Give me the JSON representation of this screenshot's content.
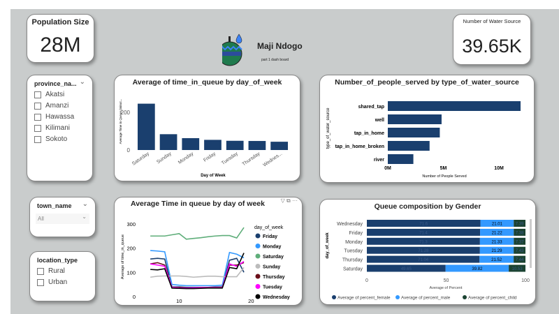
{
  "population": {
    "label": "Population Size",
    "value": "28M"
  },
  "water_sources": {
    "label": "Number of Water Source",
    "value": "39.65K"
  },
  "logo": {
    "title": "Maji Ndogo",
    "subtitle": "part 1 dash board"
  },
  "province_slicer": {
    "title": "province_na...",
    "options": [
      "Akatsi",
      "Amanzi",
      "Hawassa",
      "Kilimani",
      "Sokoto"
    ]
  },
  "town_slicer": {
    "title": "town_name",
    "value": "All"
  },
  "location_slicer": {
    "title": "location_type",
    "options": [
      "Rural",
      "Urban"
    ]
  },
  "colors": {
    "bar": "#1a3f6e",
    "female": "#1a3f6e",
    "male": "#3399ff",
    "child": "#1b4332",
    "background": "#c9cccc"
  },
  "chart_data": [
    {
      "type": "bar",
      "title": "Average of time_in_queue by day_of_week",
      "xlabel": "Day of Week",
      "ylabel": "Average Time in Queue (minut...",
      "categories": [
        "Saturday",
        "Sunday",
        "Monday",
        "Friday",
        "Tuesday",
        "Thursday",
        "Wednes..."
      ],
      "values": [
        246,
        84,
        63,
        54,
        49,
        48,
        44
      ],
      "yticks": [
        "0",
        "200"
      ],
      "ylim": [
        0,
        280
      ]
    },
    {
      "type": "bar",
      "orientation": "horizontal",
      "title": "Number_of_people_served by type_of_water_source",
      "xlabel": "Number of People Served",
      "ylabel": "type_of_water_source",
      "categories": [
        "shared_tap",
        "well",
        "tap_in_home",
        "tap_in_home_broken",
        "river"
      ],
      "values": [
        11.95,
        4.84,
        4.68,
        3.76,
        2.3
      ],
      "unit": "M",
      "xticks": [
        "0M",
        "5M",
        "10M"
      ],
      "xlim": [
        0,
        12.5
      ]
    },
    {
      "type": "line",
      "title": "Average Time in queue by day of week",
      "xlabel": "hour_of_day",
      "ylabel": "Average of time_in_queue",
      "legend_title": "day_of_week",
      "x": [
        6,
        7,
        8,
        9,
        10,
        11,
        12,
        13,
        14,
        15,
        16,
        17,
        18,
        19
      ],
      "xticks": [
        "10",
        "20"
      ],
      "yticks": [
        "0",
        "100",
        "200",
        "300"
      ],
      "ylim": [
        0,
        300
      ],
      "xlim": [
        5.5,
        20
      ],
      "series": [
        {
          "name": "Friday",
          "color": "#1a3f6e",
          "values": [
            155,
            158,
            155,
            40,
            40,
            38,
            38,
            38,
            38,
            40,
            40,
            150,
            158,
            100
          ]
        },
        {
          "name": "Monday",
          "color": "#3399ff",
          "values": [
            190,
            188,
            185,
            50,
            47,
            45,
            45,
            45,
            45,
            45,
            47,
            182,
            175,
            160
          ]
        },
        {
          "name": "Saturday",
          "color": "#5fae7a",
          "values": [
            250,
            250,
            250,
            255,
            260,
            237,
            240,
            243,
            247,
            250,
            252,
            252,
            242,
            285
          ]
        },
        {
          "name": "Sunday",
          "color": "#bbbbbb",
          "values": [
            80,
            84,
            85,
            85,
            85,
            83,
            80,
            82,
            84,
            84,
            82,
            82,
            82,
            120
          ]
        },
        {
          "name": "Thursday",
          "color": "#6b0f1a",
          "values": [
            135,
            140,
            130,
            38,
            38,
            36,
            36,
            38,
            38,
            38,
            38,
            130,
            130,
            140
          ]
        },
        {
          "name": "Tuesday",
          "color": "#ff00ff",
          "values": [
            135,
            130,
            125,
            38,
            36,
            35,
            36,
            37,
            37,
            37,
            37,
            135,
            125,
            145
          ]
        },
        {
          "name": "Wednesday",
          "color": "#000000",
          "values": [
            112,
            110,
            115,
            35,
            34,
            33,
            33,
            34,
            35,
            35,
            35,
            120,
            115,
            180
          ]
        }
      ]
    },
    {
      "type": "bar",
      "orientation": "horizontal",
      "stacked": true,
      "title": "Queue composition by Gender",
      "xlabel": "Average of Percent",
      "ylabel": "day_of_week",
      "categories": [
        "Wednesday",
        "Friday",
        "Monday",
        "Tuesday",
        "Thursday",
        "Saturday"
      ],
      "xticks": [
        "0",
        "50",
        "100"
      ],
      "xlim": [
        0,
        100
      ],
      "series": [
        {
          "name": "Average of percent_female",
          "color": "#1a3f6e",
          "values": [
            71.6,
            71.4,
            71.3,
            71.28,
            71.04,
            49.65
          ]
        },
        {
          "name": "Average of percent_male",
          "color": "#3399ff",
          "values": [
            21.01,
            21.22,
            21.33,
            21.29,
            21.52,
            39.82
          ]
        },
        {
          "name": "Average of percent_child",
          "color": "#1b4332",
          "values": [
            7.39,
            7.38,
            7.37,
            7.43,
            7.44,
            10.53
          ]
        }
      ]
    }
  ]
}
